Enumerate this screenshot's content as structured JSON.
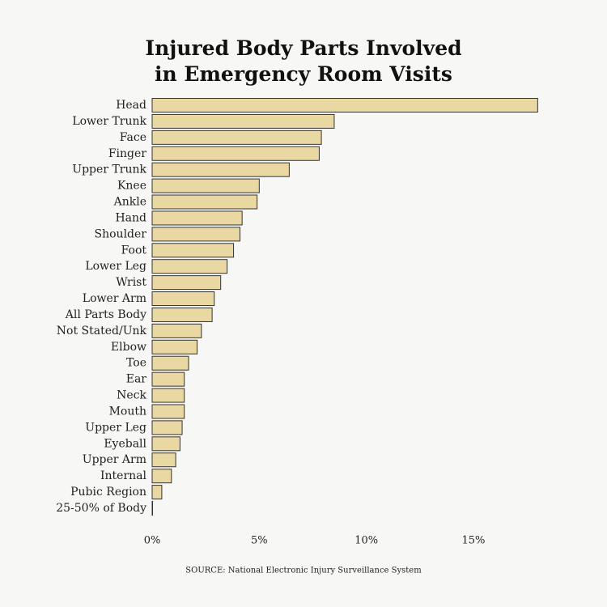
{
  "chart_data": {
    "type": "bar",
    "orientation": "horizontal",
    "title": "Injured Body Parts Involved in Emergency Room Visits",
    "source": "SOURCE: National Electronic Injury Surveillance System",
    "categories": [
      "Head",
      "Lower Trunk",
      "Face",
      "Finger",
      "Upper Trunk",
      "Knee",
      "Ankle",
      "Hand",
      "Shoulder",
      "Foot",
      "Lower Leg",
      "Wrist",
      "Lower Arm",
      "All Parts Body",
      "Not Stated/Unk",
      "Elbow",
      "Toe",
      "Ear",
      "Neck",
      "Mouth",
      "Upper Leg",
      "Eyeball",
      "Upper Arm",
      "Internal",
      "Pubic Region",
      "25-50% of Body"
    ],
    "values": [
      18.0,
      8.5,
      7.9,
      7.8,
      6.4,
      5.0,
      4.9,
      4.2,
      4.1,
      3.8,
      3.5,
      3.2,
      2.9,
      2.8,
      2.3,
      2.1,
      1.7,
      1.5,
      1.5,
      1.5,
      1.4,
      1.3,
      1.1,
      0.9,
      0.45,
      0.02
    ],
    "color": "#ead8a2",
    "xlim": [
      0,
      18.1
    ],
    "xticks": [
      {
        "value": 0,
        "label": "0%"
      },
      {
        "value": 5,
        "label": "5%"
      },
      {
        "value": 10,
        "label": "10%"
      },
      {
        "value": 15,
        "label": "15%"
      }
    ],
    "grid": false
  }
}
